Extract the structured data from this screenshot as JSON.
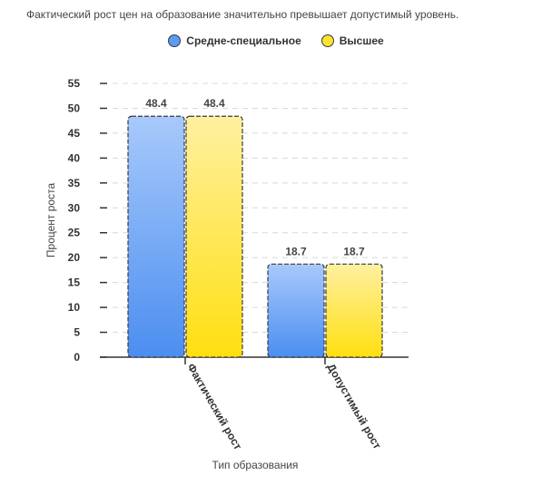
{
  "header": {
    "title": "Фактический рост цен на образование значительно превышает допустимый уровень."
  },
  "chart_data": {
    "type": "bar",
    "title": "Фактический рост цен на образование значительно превышает допустимый уровень.",
    "categories": [
      "Фактический рост",
      "Допустимый рост"
    ],
    "series": [
      {
        "name": "Средне-специальное",
        "values": [
          48.4,
          18.7
        ],
        "color": "#5b9bf2"
      },
      {
        "name": "Высшее",
        "values": [
          48.4,
          18.7
        ],
        "color": "#ffe12e"
      }
    ],
    "xlabel": "Тип образования",
    "ylabel": "Процент роста",
    "ylim": [
      0,
      55
    ],
    "yticks": [
      0,
      5,
      10,
      15,
      20,
      25,
      30,
      35,
      40,
      45,
      50,
      55
    ],
    "grid": true,
    "legend_position": "top-center",
    "data_labels": true
  }
}
